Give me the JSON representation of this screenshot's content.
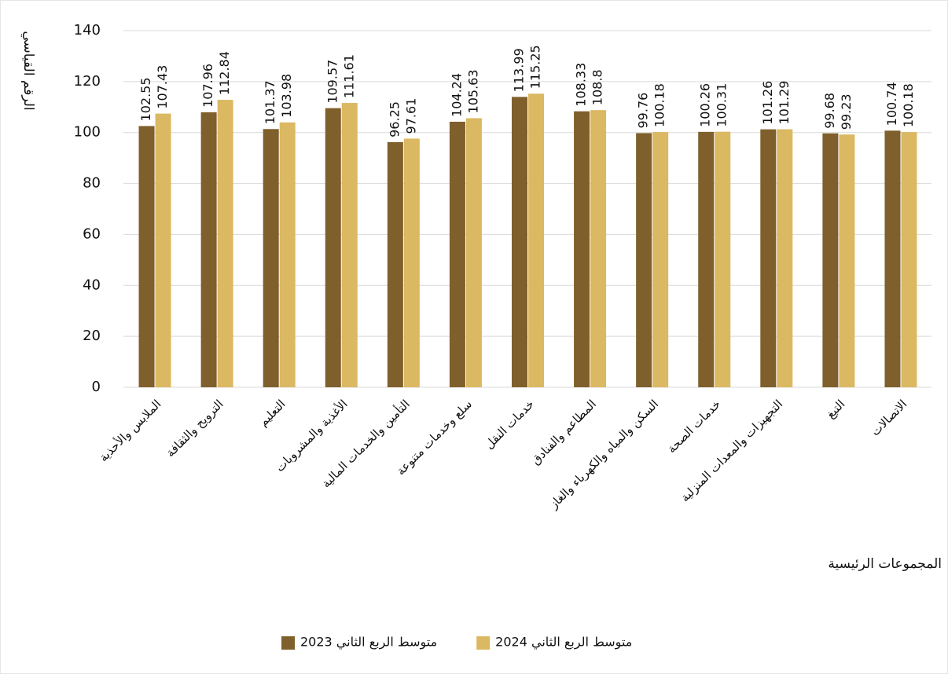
{
  "chart_data": {
    "type": "bar",
    "y_label": "الرقم القياسي",
    "x_label": "المجموعات الرئيسية",
    "categories": [
      "الملابس والأحذية",
      "الترويح والثقافة",
      "التعليم",
      "الأغذية والمشروبات",
      "التأمين والخدمات المالية",
      "سلع وخدمات متنوعة",
      "خدمات النقل",
      "المطاعم والفنادق",
      "السكن والمياه والكهرباء والغاز",
      "خدمات الصحة",
      "التجهيزات والمعدات المنزلية",
      "التبغ",
      "الاتصالات"
    ],
    "series": [
      {
        "name": "متوسط الربع الثاني 2023",
        "color": "#7f5f2b",
        "values": [
          102.55,
          107.96,
          101.37,
          109.57,
          96.25,
          104.24,
          113.99,
          108.33,
          99.76,
          100.26,
          101.26,
          99.68,
          100.74
        ]
      },
      {
        "name": "متوسط الربع الثاني 2024",
        "color": "#dbb862",
        "values": [
          107.43,
          112.84,
          103.98,
          111.61,
          97.61,
          105.63,
          115.25,
          108.8,
          100.18,
          100.31,
          101.29,
          99.23,
          100.18
        ]
      }
    ],
    "ylim": [
      0,
      140
    ],
    "yticks": [
      0,
      20,
      40,
      60,
      80,
      100,
      120,
      140
    ],
    "grid": true
  }
}
